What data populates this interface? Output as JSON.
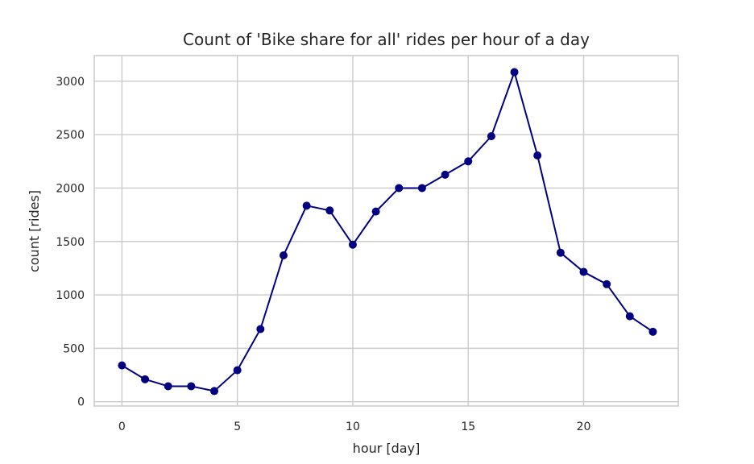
{
  "chart_data": {
    "type": "line",
    "title": "Count of 'Bike share for all' rides per hour of a day",
    "xlabel": "hour [day]",
    "ylabel": "count [rides]",
    "xlim": [
      -1.2,
      24.1
    ],
    "ylim": [
      -40,
      3240
    ],
    "xticks": [
      0,
      5,
      10,
      15,
      20
    ],
    "yticks": [
      0,
      500,
      1000,
      1500,
      2000,
      2500,
      3000
    ],
    "grid": true,
    "series": [
      {
        "color": "#000080",
        "marker": "circle",
        "x": [
          0,
          1,
          2,
          3,
          4,
          5,
          6,
          7,
          8,
          9,
          10,
          11,
          12,
          13,
          14,
          15,
          16,
          17,
          18,
          19,
          20,
          21,
          22,
          23
        ],
        "y": [
          340,
          210,
          145,
          145,
          100,
          295,
          680,
          1370,
          1835,
          1790,
          1470,
          1780,
          2000,
          2000,
          2125,
          2250,
          2485,
          3085,
          2305,
          1395,
          1215,
          1100,
          800,
          655
        ]
      }
    ]
  }
}
